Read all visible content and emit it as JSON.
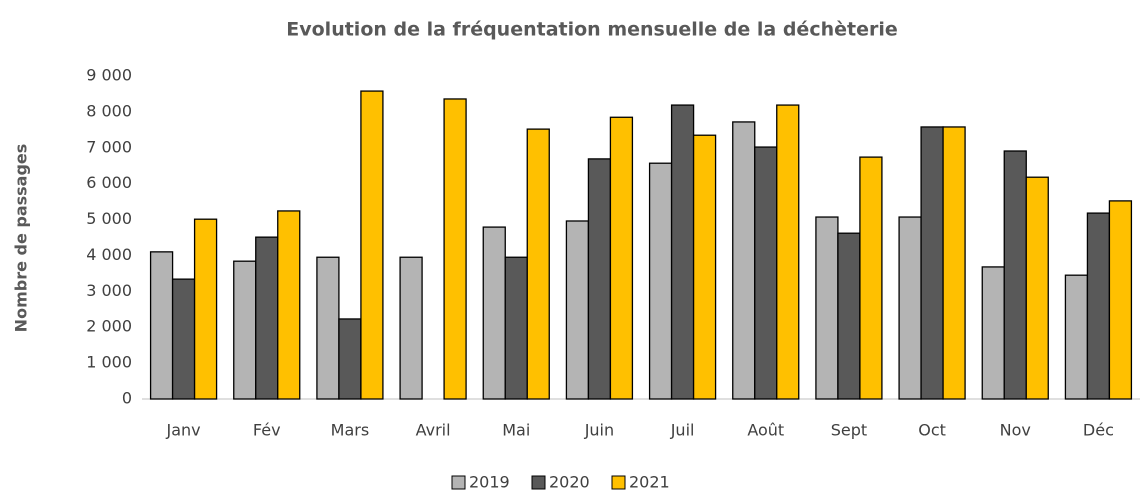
{
  "chart_data": {
    "type": "bar",
    "title": "Evolution de la fréquentation mensuelle de la déchèterie",
    "y_label": "Nombre de passages",
    "categories": [
      "Janv",
      "Fév",
      "Mars",
      "Avril",
      "Mai",
      "Juin",
      "Juil",
      "Août",
      "Sept",
      "Oct",
      "Nov",
      "Déc"
    ],
    "series": [
      {
        "name": "2019",
        "color": "#b4b4b4",
        "values": [
          4100,
          3840,
          3950,
          3950,
          4790,
          4960,
          6570,
          7720,
          5070,
          5070,
          3680,
          3450
        ]
      },
      {
        "name": "2020",
        "color": "#595959",
        "values": [
          3340,
          4510,
          2230,
          null,
          3950,
          6690,
          8190,
          7020,
          4620,
          7580,
          6910,
          5180
        ]
      },
      {
        "name": "2021",
        "color": "#ffc000",
        "values": [
          5010,
          5240,
          8580,
          8360,
          7520,
          7850,
          7350,
          8190,
          6740,
          7580,
          6180,
          5520
        ]
      }
    ],
    "ylim": [
      0,
      9000
    ],
    "yticks": [
      0,
      {
        "value": 1000,
        "label": "1 000"
      },
      {
        "value": 2000,
        "label": "2 000"
      },
      {
        "value": 3000,
        "label": "3 000"
      },
      {
        "value": 4000,
        "label": "4 000"
      },
      {
        "value": 5000,
        "label": "5 000"
      },
      {
        "value": 6000,
        "label": "6 000"
      },
      {
        "value": 7000,
        "label": "7 000"
      },
      {
        "value": 8000,
        "label": "8 000"
      },
      {
        "value": 9000,
        "label": "9 000"
      }
    ],
    "grid": false,
    "legend": "bottom"
  }
}
